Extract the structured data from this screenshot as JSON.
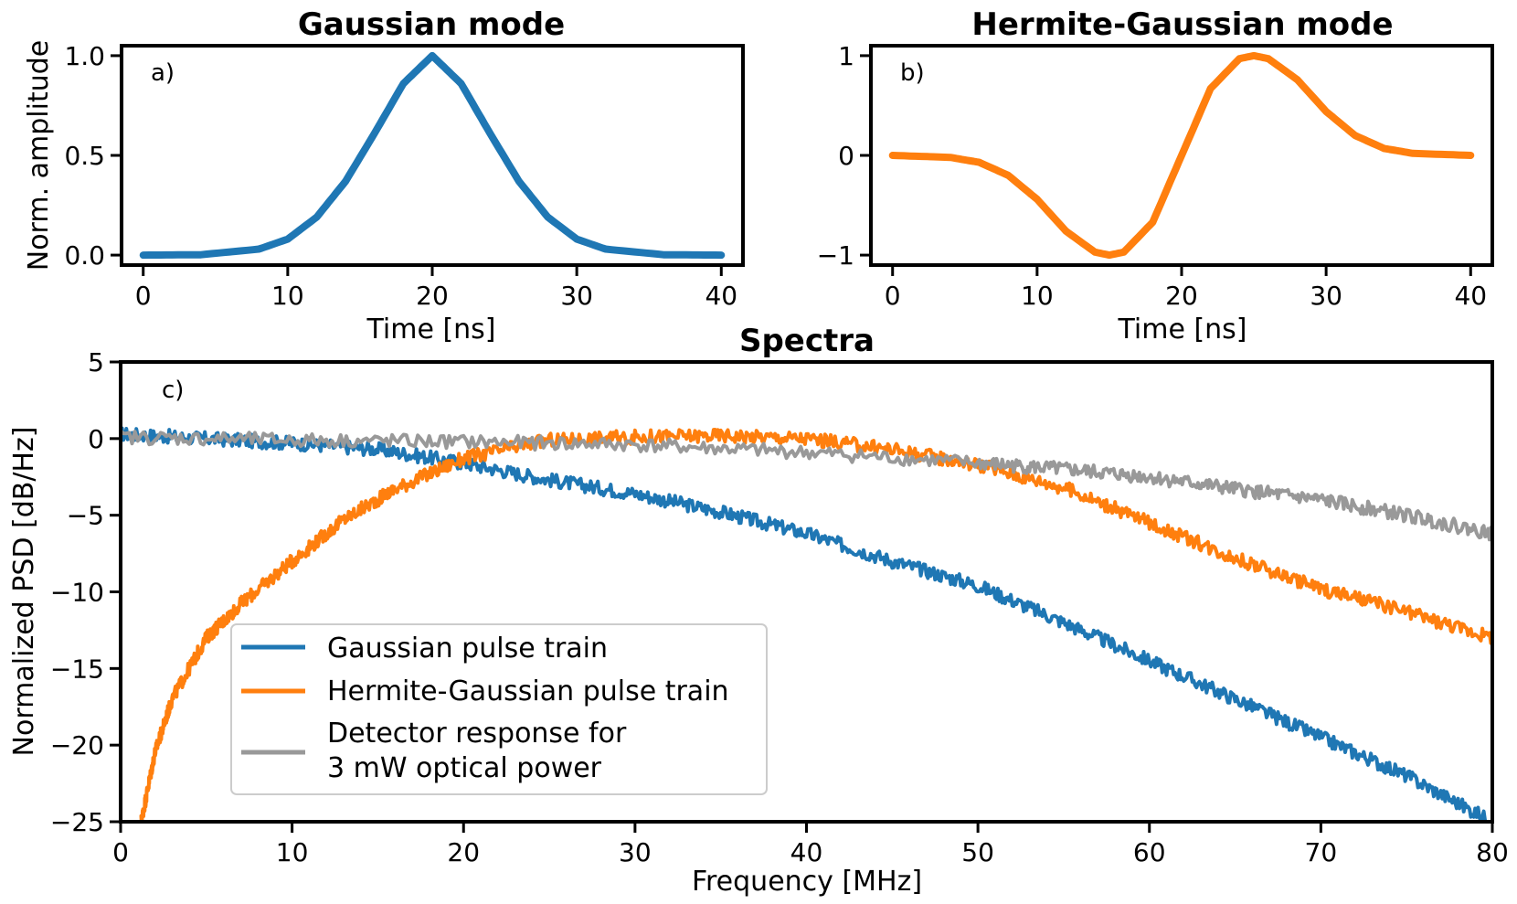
{
  "colors": {
    "blue": "#1f77b4",
    "orange": "#ff7f0e",
    "gray": "#999999",
    "axes": "#000000"
  },
  "chart_data": [
    {
      "id": "a",
      "type": "line",
      "title": "Gaussian mode",
      "panel_label": "a)",
      "xlabel": "Time [ns]",
      "ylabel": "Norm. amplitude",
      "xlim": [
        -1.5,
        41.5
      ],
      "ylim": [
        -0.05,
        1.05
      ],
      "xticks": [
        0,
        10,
        20,
        30,
        40
      ],
      "yticks": [
        0.0,
        0.5,
        1.0
      ],
      "ytick_labels": [
        "0.0",
        "0.5",
        "1.0"
      ],
      "grid": false,
      "series": [
        {
          "color": "#1f77b4",
          "x": [
            0,
            4,
            8,
            10,
            12,
            14,
            16,
            18,
            20,
            22,
            24,
            26,
            28,
            30,
            32,
            36,
            40
          ],
          "y": [
            0.0,
            0.002,
            0.03,
            0.08,
            0.19,
            0.37,
            0.61,
            0.86,
            1.0,
            0.86,
            0.61,
            0.37,
            0.19,
            0.08,
            0.03,
            0.002,
            0.0
          ]
        }
      ]
    },
    {
      "id": "b",
      "type": "line",
      "title": "Hermite-Gaussian mode",
      "panel_label": "b)",
      "xlabel": "Time [ns]",
      "ylabel": "",
      "xlim": [
        -1.5,
        41.5
      ],
      "ylim": [
        -1.1,
        1.1
      ],
      "xticks": [
        0,
        10,
        20,
        30,
        40
      ],
      "yticks": [
        -1,
        0,
        1
      ],
      "ytick_labels": [
        "−1",
        "0",
        "1"
      ],
      "grid": false,
      "series": [
        {
          "color": "#ff7f0e",
          "x": [
            0,
            4,
            6,
            8,
            10,
            12,
            14,
            15,
            16,
            18,
            20,
            22,
            24,
            25,
            26,
            28,
            30,
            32,
            34,
            36,
            40
          ],
          "y": [
            0.0,
            -0.02,
            -0.07,
            -0.2,
            -0.44,
            -0.76,
            -0.97,
            -1.0,
            -0.97,
            -0.67,
            0.0,
            0.67,
            0.97,
            1.0,
            0.97,
            0.76,
            0.44,
            0.2,
            0.07,
            0.02,
            0.0
          ]
        }
      ]
    },
    {
      "id": "c",
      "type": "line",
      "title": "Spectra",
      "panel_label": "c)",
      "xlabel": "Frequency [MHz]",
      "ylabel": "Normalized PSD [dB/Hz]",
      "xlim": [
        0,
        80
      ],
      "ylim": [
        -25,
        5
      ],
      "xticks": [
        0,
        10,
        20,
        30,
        40,
        50,
        60,
        70,
        80
      ],
      "yticks": [
        5,
        0,
        -5,
        -10,
        -15,
        -20,
        -25
      ],
      "ytick_labels": [
        "5",
        "0",
        "−5",
        "−10",
        "−15",
        "−20",
        "−25"
      ],
      "grid": false,
      "legend_position": "lower-left",
      "series": [
        {
          "name": "Gaussian pulse train",
          "color": "#1f77b4",
          "x": [
            0,
            5,
            10,
            15,
            20,
            25,
            30,
            35,
            40,
            45,
            50,
            55,
            60,
            65,
            70,
            75,
            80
          ],
          "y": [
            0.3,
            0.0,
            -0.3,
            -0.7,
            -1.6,
            -2.7,
            -3.6,
            -4.8,
            -6.2,
            -8.0,
            -9.6,
            -12.0,
            -14.5,
            -17.0,
            -19.5,
            -22.0,
            -25.0
          ]
        },
        {
          "name": "Hermite-Gaussian pulse train",
          "color": "#ff7f0e",
          "x": [
            1.2,
            2,
            3,
            5,
            7,
            10,
            13,
            16,
            20,
            25,
            30,
            35,
            40,
            45,
            50,
            55,
            60,
            65,
            70,
            75,
            80
          ],
          "y": [
            -25,
            -20.5,
            -17,
            -13,
            -10.8,
            -8.0,
            -5.3,
            -3.3,
            -1.3,
            -0.1,
            0.1,
            0.2,
            0.0,
            -0.7,
            -1.7,
            -3.2,
            -5.5,
            -7.8,
            -9.8,
            -11.3,
            -13.0
          ]
        },
        {
          "name": "Detector response for",
          "name_line2": "3 mW optical power",
          "color": "#999999",
          "x": [
            0,
            10,
            20,
            30,
            40,
            50,
            55,
            60,
            65,
            70,
            75,
            80
          ],
          "y": [
            0.1,
            -0.1,
            -0.2,
            -0.4,
            -0.9,
            -1.6,
            -2.0,
            -2.5,
            -3.3,
            -4.0,
            -5.0,
            -6.2
          ]
        }
      ]
    }
  ]
}
